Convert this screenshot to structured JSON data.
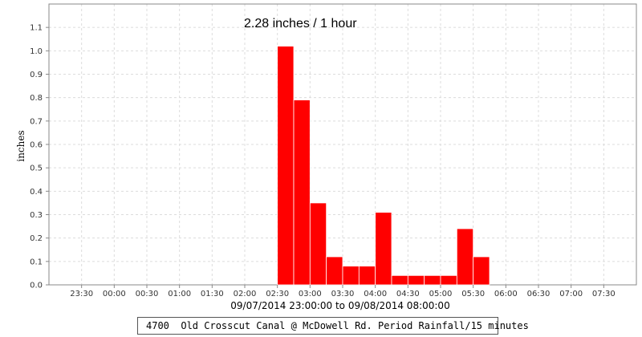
{
  "chart_data": {
    "type": "bar",
    "annotation": "2.28 inches / 1 hour",
    "xlabel": "09/07/2014 23:00:00 to 09/08/2014 08:00:00",
    "ylabel": "inches",
    "ylim": [
      0,
      1.2
    ],
    "y_ticks": [
      "0.0",
      "0.1",
      "0.2",
      "0.3",
      "0.4",
      "0.5",
      "0.6",
      "0.7",
      "0.8",
      "0.9",
      "1.0",
      "1.1"
    ],
    "x_ticks": [
      "23:30",
      "00:00",
      "00:30",
      "01:00",
      "01:30",
      "02:00",
      "02:30",
      "03:00",
      "03:30",
      "04:00",
      "04:30",
      "05:00",
      "05:30",
      "06:00",
      "06:30",
      "07:00",
      "07:30"
    ],
    "x_range": [
      "23:00",
      "08:00"
    ],
    "bar_width_minutes": 15,
    "grid": true,
    "color": "#ff0000",
    "series": [
      {
        "name": "4700  Old Crosscut Canal @ McDowell Rd. Period Rainfall/15 minutes",
        "bars": [
          {
            "start": "02:30",
            "value": 1.02
          },
          {
            "start": "02:45",
            "value": 0.79
          },
          {
            "start": "03:00",
            "value": 0.35
          },
          {
            "start": "03:15",
            "value": 0.12
          },
          {
            "start": "03:30",
            "value": 0.08
          },
          {
            "start": "03:45",
            "value": 0.08
          },
          {
            "start": "04:00",
            "value": 0.31
          },
          {
            "start": "04:15",
            "value": 0.04
          },
          {
            "start": "04:30",
            "value": 0.04
          },
          {
            "start": "04:45",
            "value": 0.04
          },
          {
            "start": "05:00",
            "value": 0.04
          },
          {
            "start": "05:15",
            "value": 0.24
          },
          {
            "start": "05:30",
            "value": 0.12
          }
        ]
      }
    ],
    "legend_position": "bottom"
  }
}
